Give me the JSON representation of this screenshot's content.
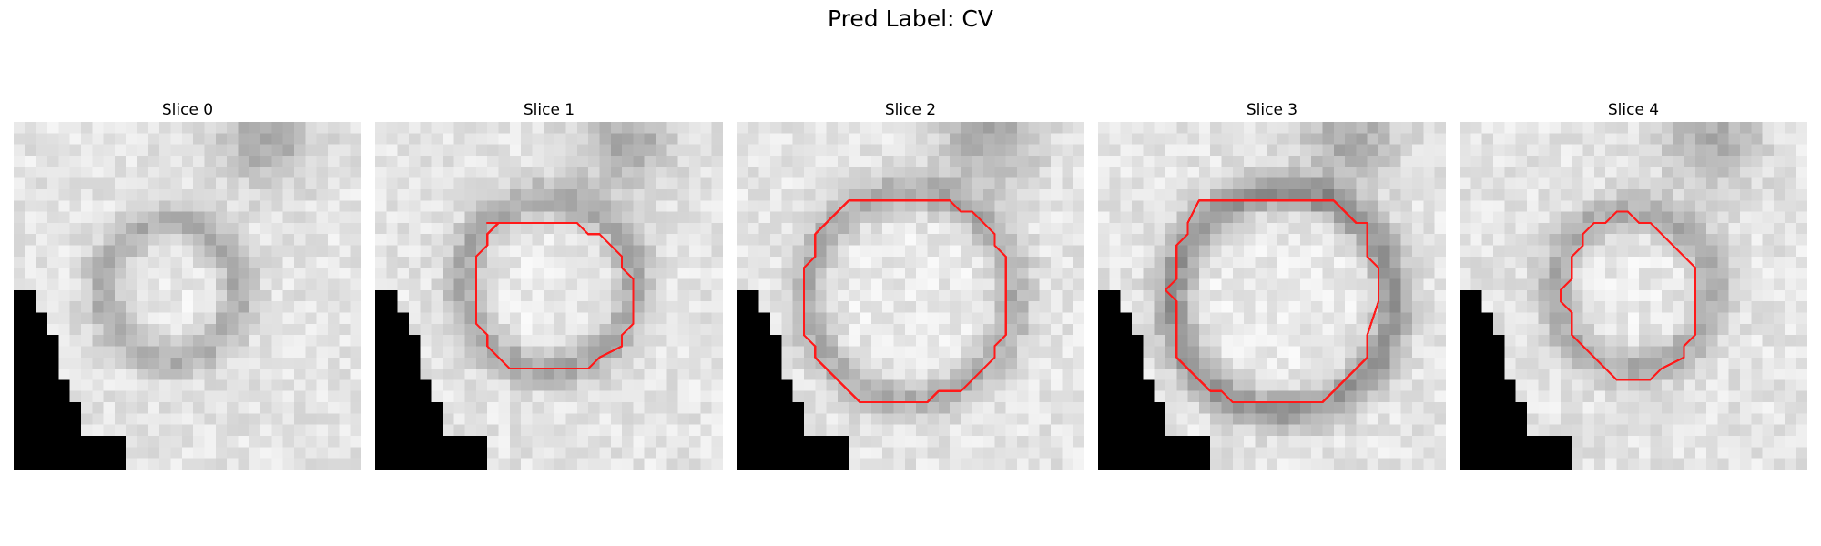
{
  "figure": {
    "title": "Pred Label: CV"
  },
  "panels": [
    {
      "title": "Slice 0",
      "has_outline": false
    },
    {
      "title": "Slice 1",
      "has_outline": true
    },
    {
      "title": "Slice 2",
      "has_outline": true
    },
    {
      "title": "Slice 3",
      "has_outline": true
    },
    {
      "title": "Slice 4",
      "has_outline": true
    }
  ],
  "colors": {
    "outline": "#ff1a1a",
    "mask": "#000000"
  }
}
